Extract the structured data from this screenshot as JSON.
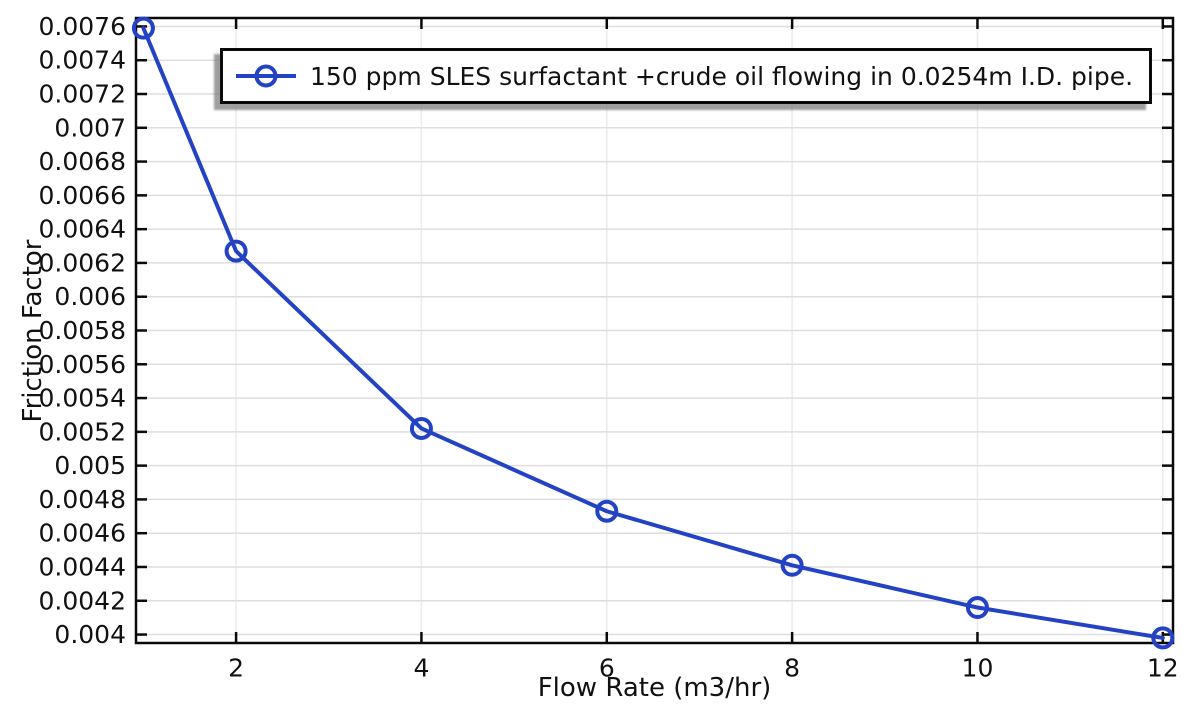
{
  "chart_data": {
    "type": "line",
    "title": "",
    "xlabel": "Flow Rate (m3/hr)",
    "ylabel": "Friction Factor",
    "legend_position": "top-center-inside",
    "grid": true,
    "marker": "open-circle",
    "x": [
      1,
      2,
      4,
      6,
      8,
      10,
      12
    ],
    "series": [
      {
        "name": "150 ppm SLES surfactant +crude oil flowing in 0.0254m I.D. pipe.",
        "values": [
          0.00759,
          0.00627,
          0.00522,
          0.00473,
          0.00441,
          0.00416,
          0.00398
        ]
      }
    ],
    "xlim": [
      0.92,
      12.11
    ],
    "ylim": [
      0.00395,
      0.00765
    ],
    "xticks": [
      2,
      4,
      6,
      8,
      10,
      12
    ],
    "xtick_labels": [
      "2",
      "4",
      "6",
      "8",
      "10",
      "12"
    ],
    "yticks": [
      0.004,
      0.0042,
      0.0044,
      0.0046,
      0.0048,
      0.005,
      0.0052,
      0.0054,
      0.0056,
      0.0058,
      0.006,
      0.0062,
      0.0064,
      0.0066,
      0.0068,
      0.007,
      0.0072,
      0.0074,
      0.0076
    ],
    "ytick_labels": [
      "0.004",
      "0.0042",
      "0.0044",
      "0.0046",
      "0.0048",
      "0.005",
      "0.0052",
      "0.0054",
      "0.0056",
      "0.0058",
      "0.006",
      "0.0062",
      "0.0064",
      "0.0066",
      "0.0068",
      "0.007",
      "0.0072",
      "0.0074",
      "0.0076"
    ],
    "colors": {
      "line": "#2342c4",
      "axis": "#0a0a0a",
      "grid_horizontal": "#dedede",
      "grid_vertical": "#ebebeb",
      "tick_text": "#111111",
      "background": "#ffffff",
      "legend_shadow": "#7d7d7d"
    }
  }
}
